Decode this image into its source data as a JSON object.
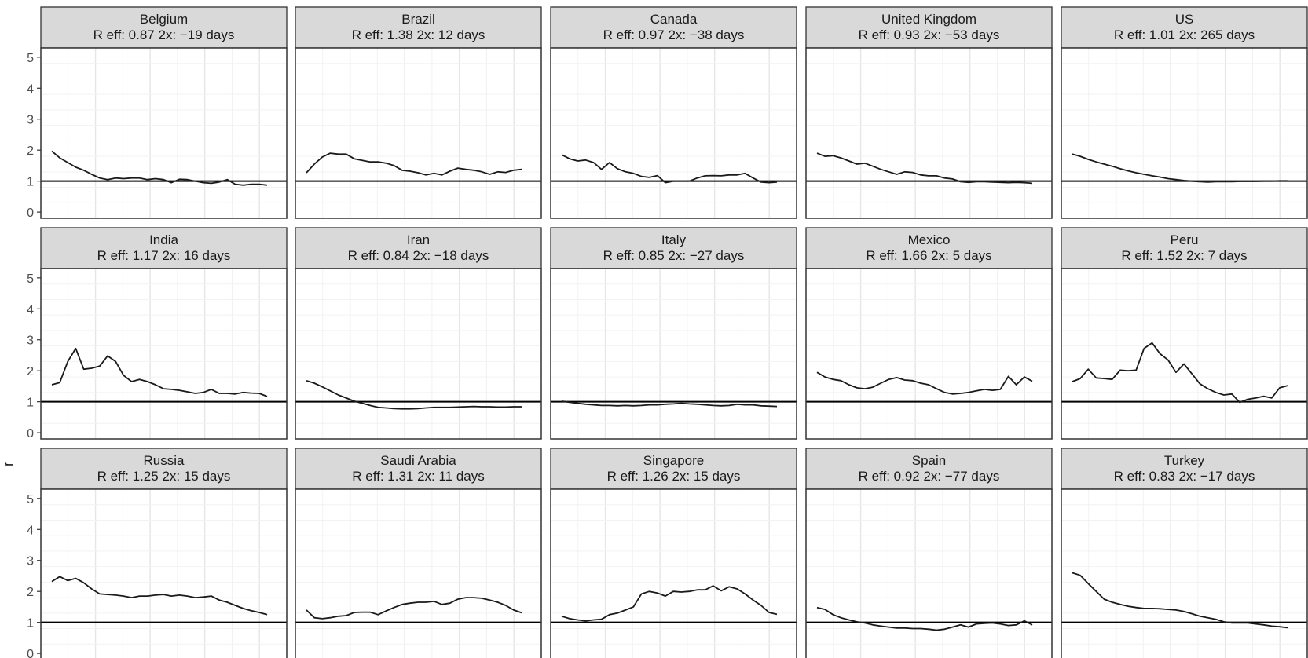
{
  "chart_data": {
    "type": "line",
    "layout": "facet-grid",
    "ylabel": "r",
    "ylim": [
      -0.2,
      5.3
    ],
    "yticks": [
      0,
      1,
      2,
      3,
      4,
      5
    ],
    "reference_line": 1,
    "grid": true,
    "panels": [
      {
        "title": "Belgium",
        "subtitle": "R eff: 0.87    2x: −19 days",
        "values": [
          1.97,
          1.75,
          1.6,
          1.45,
          1.35,
          1.22,
          1.1,
          1.05,
          1.1,
          1.08,
          1.1,
          1.1,
          1.05,
          1.08,
          1.05,
          0.95,
          1.06,
          1.05,
          1.0,
          0.95,
          0.93,
          0.97,
          1.05,
          0.9,
          0.87,
          0.9,
          0.9,
          0.87
        ]
      },
      {
        "title": "Brazil",
        "subtitle": "R eff: 1.38    2x: 12 days",
        "values": [
          1.27,
          1.55,
          1.78,
          1.9,
          1.87,
          1.87,
          1.72,
          1.67,
          1.62,
          1.62,
          1.58,
          1.5,
          1.35,
          1.32,
          1.27,
          1.2,
          1.25,
          1.2,
          1.32,
          1.42,
          1.38,
          1.35,
          1.3,
          1.22,
          1.3,
          1.28,
          1.35,
          1.38
        ]
      },
      {
        "title": "Canada",
        "subtitle": "R eff: 0.97    2x: −38 days",
        "values": [
          1.85,
          1.72,
          1.65,
          1.68,
          1.6,
          1.38,
          1.6,
          1.4,
          1.3,
          1.25,
          1.15,
          1.12,
          1.18,
          0.95,
          1.0,
          1.0,
          1.0,
          1.1,
          1.17,
          1.18,
          1.17,
          1.2,
          1.2,
          1.25,
          1.1,
          0.97,
          0.95,
          0.97
        ]
      },
      {
        "title": "United Kingdom",
        "subtitle": "R eff: 0.93    2x: −53 days",
        "values": [
          1.9,
          1.8,
          1.82,
          1.75,
          1.65,
          1.55,
          1.58,
          1.48,
          1.38,
          1.3,
          1.22,
          1.3,
          1.28,
          1.2,
          1.17,
          1.17,
          1.1,
          1.07,
          0.98,
          0.96,
          0.98,
          0.98,
          0.97,
          0.96,
          0.95,
          0.96,
          0.95,
          0.93
        ]
      },
      {
        "title": "US",
        "subtitle": "R eff: 1.01    2x: 265 days",
        "values": [
          1.87,
          1.8,
          1.7,
          1.62,
          1.55,
          1.48,
          1.4,
          1.33,
          1.27,
          1.22,
          1.17,
          1.13,
          1.08,
          1.05,
          1.02,
          1.0,
          0.98,
          0.97,
          0.98,
          0.98,
          0.98,
          0.99,
          0.99,
          0.99,
          1.0,
          1.0,
          1.01,
          1.01
        ]
      },
      {
        "title": "India",
        "subtitle": "R eff: 1.17    2x: 16 days",
        "values": [
          1.55,
          1.62,
          2.3,
          2.72,
          2.05,
          2.08,
          2.15,
          2.48,
          2.3,
          1.85,
          1.65,
          1.72,
          1.65,
          1.55,
          1.42,
          1.4,
          1.37,
          1.32,
          1.27,
          1.3,
          1.4,
          1.27,
          1.27,
          1.25,
          1.3,
          1.28,
          1.27,
          1.17
        ]
      },
      {
        "title": "Iran",
        "subtitle": "R eff: 0.84    2x: −18 days",
        "values": [
          1.68,
          1.6,
          1.48,
          1.35,
          1.22,
          1.12,
          1.02,
          0.95,
          0.88,
          0.82,
          0.8,
          0.78,
          0.77,
          0.77,
          0.78,
          0.8,
          0.82,
          0.82,
          0.82,
          0.83,
          0.84,
          0.85,
          0.84,
          0.84,
          0.83,
          0.83,
          0.84,
          0.84
        ]
      },
      {
        "title": "Italy",
        "subtitle": "R eff: 0.85    2x: −27 days",
        "values": [
          1.02,
          0.98,
          0.95,
          0.92,
          0.9,
          0.88,
          0.88,
          0.87,
          0.88,
          0.87,
          0.88,
          0.9,
          0.9,
          0.92,
          0.93,
          0.95,
          0.93,
          0.92,
          0.9,
          0.88,
          0.87,
          0.88,
          0.92,
          0.9,
          0.9,
          0.87,
          0.86,
          0.85
        ]
      },
      {
        "title": "Mexico",
        "subtitle": "R eff: 1.66    2x: 5 days",
        "values": [
          1.95,
          1.8,
          1.72,
          1.68,
          1.55,
          1.45,
          1.42,
          1.47,
          1.6,
          1.72,
          1.78,
          1.7,
          1.68,
          1.6,
          1.55,
          1.42,
          1.3,
          1.25,
          1.27,
          1.3,
          1.35,
          1.4,
          1.37,
          1.4,
          1.82,
          1.55,
          1.8,
          1.66
        ]
      },
      {
        "title": "Peru",
        "subtitle": "R eff: 1.52    2x: 7 days",
        "values": [
          1.65,
          1.75,
          2.05,
          1.77,
          1.75,
          1.72,
          2.02,
          2.0,
          2.02,
          2.72,
          2.9,
          2.55,
          2.35,
          1.95,
          2.22,
          1.9,
          1.58,
          1.42,
          1.3,
          1.22,
          1.25,
          0.98,
          1.08,
          1.12,
          1.18,
          1.12,
          1.45,
          1.52
        ]
      },
      {
        "title": "Russia",
        "subtitle": "R eff: 1.25    2x: 15 days",
        "values": [
          2.32,
          2.48,
          2.35,
          2.42,
          2.28,
          2.08,
          1.92,
          1.9,
          1.88,
          1.85,
          1.8,
          1.85,
          1.85,
          1.88,
          1.9,
          1.85,
          1.88,
          1.85,
          1.8,
          1.82,
          1.85,
          1.72,
          1.65,
          1.55,
          1.45,
          1.38,
          1.32,
          1.25
        ]
      },
      {
        "title": "Saudi Arabia",
        "subtitle": "R eff: 1.31    2x: 11 days",
        "values": [
          1.4,
          1.15,
          1.12,
          1.15,
          1.2,
          1.22,
          1.32,
          1.33,
          1.33,
          1.25,
          1.37,
          1.48,
          1.58,
          1.62,
          1.65,
          1.65,
          1.68,
          1.58,
          1.62,
          1.75,
          1.8,
          1.8,
          1.78,
          1.72,
          1.65,
          1.55,
          1.4,
          1.31
        ]
      },
      {
        "title": "Singapore",
        "subtitle": "R eff: 1.26    2x: 15 days",
        "values": [
          1.2,
          1.12,
          1.08,
          1.05,
          1.08,
          1.1,
          1.25,
          1.3,
          1.4,
          1.5,
          1.92,
          2.0,
          1.95,
          1.85,
          2.0,
          1.98,
          2.0,
          2.05,
          2.05,
          2.18,
          2.02,
          2.15,
          2.08,
          1.92,
          1.72,
          1.55,
          1.32,
          1.26
        ]
      },
      {
        "title": "Spain",
        "subtitle": "R eff: 0.92    2x: −77 days",
        "values": [
          1.48,
          1.42,
          1.25,
          1.15,
          1.08,
          1.02,
          0.98,
          0.92,
          0.88,
          0.85,
          0.82,
          0.82,
          0.8,
          0.8,
          0.78,
          0.75,
          0.78,
          0.85,
          0.92,
          0.85,
          0.95,
          0.97,
          0.98,
          0.95,
          0.9,
          0.92,
          1.05,
          0.92
        ]
      },
      {
        "title": "Turkey",
        "subtitle": "R eff: 0.83    2x: −17 days",
        "values": [
          2.6,
          2.52,
          2.25,
          2.0,
          1.75,
          1.65,
          1.58,
          1.52,
          1.48,
          1.45,
          1.45,
          1.44,
          1.42,
          1.4,
          1.35,
          1.28,
          1.2,
          1.15,
          1.1,
          1.02,
          0.98,
          0.98,
          0.98,
          0.95,
          0.92,
          0.88,
          0.86,
          0.83
        ]
      }
    ]
  }
}
